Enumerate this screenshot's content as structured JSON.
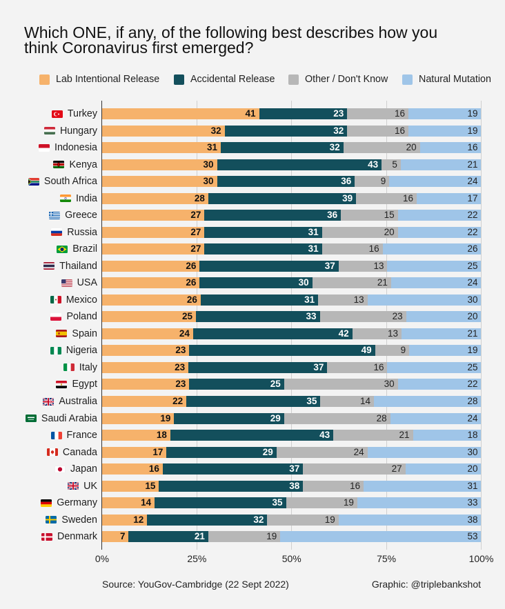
{
  "chart_data": {
    "type": "bar",
    "orientation": "horizontal",
    "stacked": true,
    "normalized_to_100": true,
    "title": "Which ONE, if any, of the following best describes how you think Coronavirus first emerged?",
    "categories": [
      "Turkey",
      "Hungary",
      "Indonesia",
      "Kenya",
      "South Africa",
      "India",
      "Greece",
      "Russia",
      "Brazil",
      "Thailand",
      "USA",
      "Mexico",
      "Poland",
      "Spain",
      "Nigeria",
      "Italy",
      "Egypt",
      "Australia",
      "Saudi Arabia",
      "France",
      "Canada",
      "Japan",
      "UK",
      "Germany",
      "Sweden",
      "Denmark"
    ],
    "flag_icons": [
      "turkey-flag",
      "hungary-flag",
      "indonesia-flag",
      "kenya-flag",
      "south-africa-flag",
      "india-flag",
      "greece-flag",
      "russia-flag",
      "brazil-flag",
      "thailand-flag",
      "usa-flag",
      "mexico-flag",
      "poland-flag",
      "spain-flag",
      "nigeria-flag",
      "italy-flag",
      "egypt-flag",
      "australia-flag",
      "saudi-arabia-flag",
      "france-flag",
      "canada-flag",
      "japan-flag",
      "uk-flag",
      "germany-flag",
      "sweden-flag",
      "denmark-flag"
    ],
    "series": [
      {
        "name": "Lab Intentional Release",
        "color": "#f6b26b",
        "label_color": "#111111",
        "label_bold": true,
        "values": [
          41,
          32,
          31,
          30,
          30,
          28,
          27,
          27,
          27,
          26,
          26,
          26,
          25,
          24,
          23,
          23,
          23,
          22,
          19,
          18,
          17,
          16,
          15,
          14,
          12,
          7
        ]
      },
      {
        "name": "Accidental Release",
        "color": "#134f5c",
        "label_color": "#ffffff",
        "label_bold": true,
        "values": [
          23,
          32,
          32,
          43,
          36,
          39,
          36,
          31,
          31,
          37,
          30,
          31,
          33,
          42,
          49,
          37,
          25,
          35,
          29,
          43,
          29,
          37,
          38,
          35,
          32,
          21
        ]
      },
      {
        "name": "Other / Don't Know",
        "color": "#b7b7b7",
        "label_color": "#222222",
        "label_bold": false,
        "values": [
          16,
          16,
          20,
          5,
          9,
          16,
          15,
          20,
          16,
          13,
          21,
          13,
          23,
          13,
          9,
          16,
          30,
          14,
          28,
          21,
          24,
          27,
          16,
          19,
          19,
          19
        ]
      },
      {
        "name": "Natural Mutation",
        "color": "#9fc5e8",
        "label_color": "#222222",
        "label_bold": false,
        "values": [
          19,
          19,
          16,
          21,
          24,
          17,
          22,
          22,
          26,
          25,
          24,
          30,
          20,
          21,
          19,
          25,
          22,
          28,
          24,
          18,
          30,
          20,
          31,
          33,
          38,
          53
        ]
      }
    ],
    "x_ticks": [
      "0%",
      "25%",
      "50%",
      "75%",
      "100%"
    ],
    "x_tick_values": [
      0,
      25,
      50,
      75,
      100
    ],
    "xlim": [
      0,
      100
    ],
    "xlabel": "",
    "ylabel": "",
    "grid": true,
    "legend_position": "top",
    "source": "Source: YouGov-Cambridge (22 Sept 2022)",
    "credit": "Graphic: @triplebankshot"
  },
  "colors": {
    "background": "#f3f3f3",
    "axis": "#333333",
    "gridline": "#cfcfcf"
  }
}
